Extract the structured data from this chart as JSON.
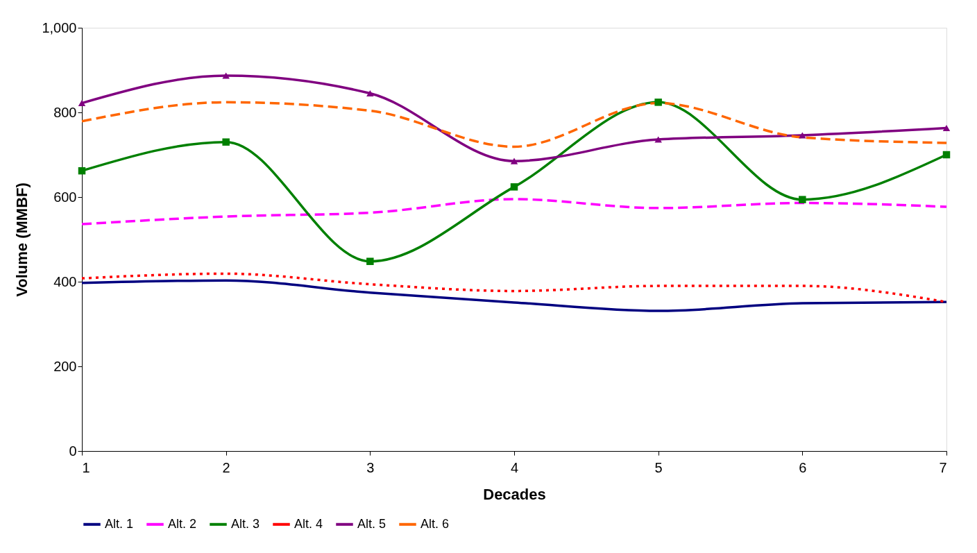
{
  "chart_data": {
    "type": "line",
    "xlabel": "Decades",
    "ylabel": "Volume (MMBF)",
    "x": [
      1,
      2,
      3,
      4,
      5,
      6,
      7
    ],
    "xlim": [
      1,
      7
    ],
    "xticks": [
      1,
      2,
      3,
      4,
      5,
      6,
      7
    ],
    "ylim": [
      0,
      1000
    ],
    "yticks": [
      0,
      200,
      400,
      600,
      800,
      {
        "value": 1000,
        "label": "1,000"
      }
    ],
    "grid": false,
    "legend": "bottom",
    "series": [
      {
        "name": "Alt. 1",
        "color": "#000080",
        "line_style": "solid",
        "marker": "none",
        "values": [
          397,
          403,
          374,
          351,
          331,
          349,
          352
        ]
      },
      {
        "name": "Alt. 2",
        "color": "#ff00ff",
        "line_style": "dashed",
        "marker": "none",
        "values": [
          536,
          554,
          563,
          595,
          574,
          586,
          577
        ]
      },
      {
        "name": "Alt. 3",
        "color": "#008000",
        "line_style": "solid",
        "marker": "square",
        "values": [
          662,
          730,
          448,
          624,
          824,
          594,
          700
        ]
      },
      {
        "name": "Alt. 4",
        "color": "#ff0000",
        "line_style": "dotted",
        "marker": "none",
        "values": [
          408,
          419,
          394,
          378,
          390,
          390,
          352
        ]
      },
      {
        "name": "Alt. 5",
        "color": "#800080",
        "line_style": "solid",
        "marker": "triangle",
        "values": [
          822,
          887,
          845,
          685,
          736,
          746,
          763
        ]
      },
      {
        "name": "Alt. 6",
        "color": "#ff6600",
        "line_style": "dashed",
        "marker": "none",
        "values": [
          779,
          824,
          804,
          719,
          822,
          741,
          728
        ]
      }
    ]
  }
}
